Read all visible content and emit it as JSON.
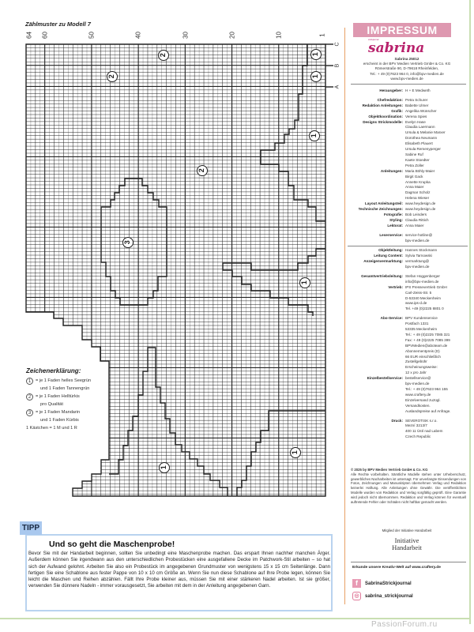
{
  "chart": {
    "title": "Zählmuster zu Modell 7",
    "column_labels": [
      "64",
      "60",
      "50",
      "40",
      "30",
      "20",
      "10",
      "1"
    ],
    "row_labels": [
      "C",
      "B",
      "A"
    ],
    "columns": 64,
    "markers": [
      "2",
      "1",
      "2",
      "1",
      "1",
      "2",
      "3",
      "1",
      "1",
      "1"
    ]
  },
  "legend": {
    "title": "Zeichenerklärung:",
    "items": [
      {
        "symbol": "1",
        "lines": [
          "= je 1 Faden helles Seegrün",
          "und 1 Faden Tannengrün"
        ]
      },
      {
        "symbol": "2",
        "lines": [
          "= je 1 Faden Helltürkis",
          "pro Qualität"
        ]
      },
      {
        "symbol": "3",
        "lines": [
          "= je 1 Faden Mandarin",
          "und 1 Faden Kürbis"
        ]
      }
    ],
    "note": "1 Kästchen = 1 M und 1 R"
  },
  "tipp": {
    "label": "TIPP",
    "heading": "Und so geht die Maschenprobe!",
    "body": "Bevor Sie mit der Handarbeit beginnen, sollten Sie unbedingt eine Maschenprobe machen. Das erspart Ihnen nachher manchen Ärger. Außerdem können Sie irgendwann aus den unterschiedlichen Probestücken eine ausgefallene Decke im Patchwork-Stil arbeiten – so hat sich der Aufwand gelohnt. Arbeiten Sie also ein Probestück im angegebenen Grundmuster von wenigstens 15 x 15 cm Seitenlänge. Dann fertigen Sie eine Schablone aus fester Pappe von 10 x 10 cm Größe an. Wenn Sie nun diese Schablone auf Ihre Probe legen, können Sie leicht die Maschen und Reihen abzählen. Fällt Ihre Probe kleiner aus, müssen Sie mit einer stärkeren Nadel arbeiten. Ist sie größer, verwenden Sie dünnere Nadeln - immer vorausgesetzt, Sie arbeiten mit dem in der Anleitung angegebenen Garn."
  },
  "impressum": {
    "banner": "IMPRESSUM",
    "logo": "sabrina",
    "logo_small": "strickjournal",
    "issue": "Sabrina 25012",
    "publisher_lines": [
      "erscheint in der BPV Medien Vertrieb GmbH & Co. KG",
      "Römerstraße 90, D-79618 Rheinfelden,",
      "Tel.: + 49 (0)7623 964 0, info@bpv-medien.de",
      "www.bpv-medien.de"
    ],
    "sections": [
      [
        {
          "label": "Herausgeber:",
          "values": [
            "H + E Medweth"
          ]
        }
      ],
      [
        {
          "label": "Chefredaktion:",
          "values": [
            "Petra Schurer"
          ]
        },
        {
          "label": "Redaktion Anleitungen:",
          "values": [
            "Babette Ulmer"
          ]
        },
        {
          "label": "Grafik:",
          "values": [
            "Angelika Wünscher"
          ]
        },
        {
          "label": "Objektkoordination:",
          "values": [
            "Verena Spies"
          ]
        },
        {
          "label": "Designs Strickmodelle:",
          "values": [
            "Evelyn Hase",
            "Claudia Laermann",
            "Ursula & Melanie Marxer",
            "Dorothea Neumann",
            "Elisabeth Plauert",
            "Ursula Remenyperger",
            "Sabine Ruf",
            "Kaete Stoedter",
            "Petra Zoller"
          ]
        },
        {
          "label": "Anleitungen:",
          "values": [
            "Maria Böhly-Maier",
            "Birgit Gack",
            "Annette Krupka",
            "Anna Maier",
            "Dagmar Scholz",
            "Helena Wieser"
          ]
        },
        {
          "label": "Layout Anleitungsteil:",
          "values": [
            "www.heydesign.de"
          ]
        },
        {
          "label": "Technische Zeichnungen:",
          "values": [
            "www.heydesign.de"
          ]
        },
        {
          "label": "Fotografie:",
          "values": [
            "Bob Leinders"
          ]
        },
        {
          "label": "Styling:",
          "values": [
            "Claudia Rittich"
          ]
        },
        {
          "label": "Lektorat:",
          "values": [
            "Anna Maier"
          ]
        }
      ],
      [
        {
          "label": "Leserservice:",
          "values": [
            "service-hotline@",
            "bpv-medien.de"
          ]
        }
      ]
    ],
    "sections2": [
      [
        {
          "label": "Objektleitung:",
          "values": [
            "Hannes Stockmann"
          ]
        },
        {
          "label": "Leitung Content:",
          "values": [
            "Sylvia Tarnowski"
          ]
        },
        {
          "label": "Anzeigenvermarktung:",
          "values": [
            "vermarktung@",
            "bpv-medien.de"
          ]
        }
      ],
      [
        {
          "label": "Gesamtvertriebsleitung:",
          "values": [
            "Stefan Hoggenberger",
            "info@bpv-medien.de"
          ]
        },
        {
          "label": "Vertrieb:",
          "values": [
            "IPS Pressevertrieb GmbH",
            "Carl-Zeiss-Str. 5",
            "D-53340 Meckenheim",
            "www.ips-d.de",
            "Tel. +49 (0)2225 8801 0"
          ]
        }
      ],
      [
        {
          "label": "Abo-Service:",
          "values": [
            "BPV Kundenservice",
            "Postfach 1331",
            "53335 Meckenheim",
            "Tel.: + 49 (0)2225 7085 321",
            "Fax: + 49 (0)2225 7085 399",
            "BPVMedien@aboteam.de",
            "Abonnementpreis (D)",
            "66 EUR einschließlich",
            "Zustellgebühr",
            "Erscheinungsweise:",
            "12 x pro Jahr"
          ]
        },
        {
          "label": "Einzelbestellservice:",
          "values": [
            "bestellservice@",
            "bpv-medien.de",
            "Tel.: + 49 (0)7623 964 155",
            "www.craftery.de",
            "Einzelversand zuzügl.",
            "Versandkosten.",
            "Auslandspreise auf Anfrage."
          ]
        }
      ],
      [
        {
          "label": "Druck:",
          "values": [
            "SEVEROTISK s.r.o.",
            "Mezní 3213/7",
            "400 11 Ústí nad Labem",
            "Czech Republic"
          ]
        }
      ]
    ],
    "copyright_head": "© 2025 by BPV Medien Vertrieb GmbH & Co. KG",
    "copyright_body": "Alle Rechte vorbehalten. Sämtliche Modelle stehen unter Urheberschutz, gewerbliches Nacharbeiten ist untersagt. Für unverlangte Einsendungen von Fotos, Zeichnungen und Manuskripten übernehmen Verlag und Redaktion keinerlei Haftung. Alle Anleitungen ohne Gewähr. Die veröffentlichten Modelle wurden von Redaktion und Verlag sorgfältig geprüft. Eine Garantie wird jedoch nicht übernommen. Redaktion und Verlag können für eventuell auftretende Fehler oder Schäden nicht haftbar gemacht werden.",
    "member": "Mitglied der Initiative Handarbeit",
    "initiative_logo": [
      "Initiative",
      "Handarbeit"
    ],
    "explore": "Erkunde unsere Kreativ-Welt auf www.craftery.de",
    "facebook": "SabrinaStrickjournal",
    "instagram": "sabrina_strickjournal"
  },
  "watermark": "PassionForum.ru",
  "colors": {
    "banner": "#de98b0",
    "logo": "#b8226c",
    "tipp": "#a9c8ee",
    "frame": "#c9dfb2",
    "rule": "#e8a064"
  }
}
